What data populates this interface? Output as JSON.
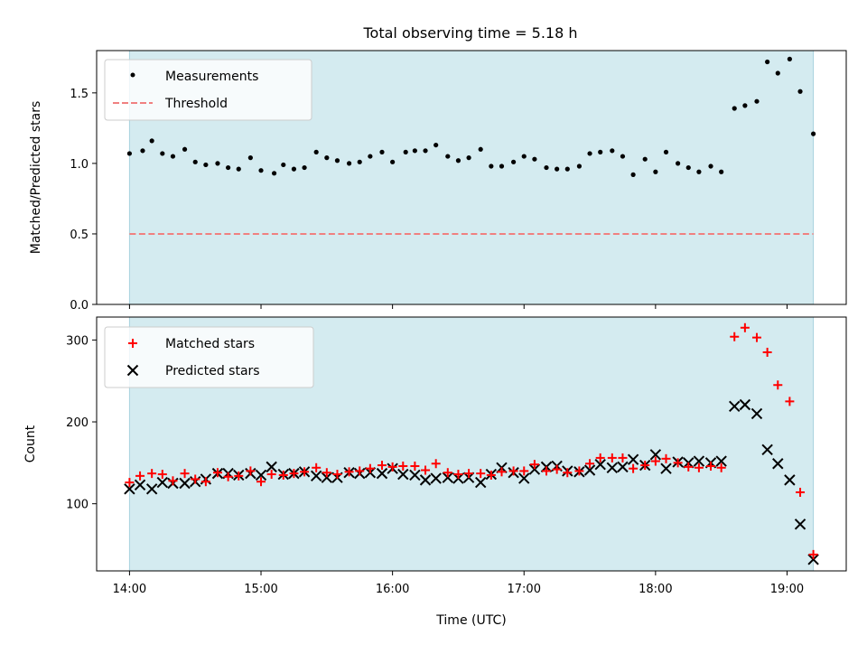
{
  "figure": {
    "title": "Total observing time = 5.18 h",
    "shade_color": "#d4ebf0",
    "shade_edge": "#a9d3df"
  },
  "chart_data": [
    {
      "type": "scatter",
      "ylabel": "Matched/Predicted stars",
      "xlim_hours": [
        13.75,
        19.45
      ],
      "ylim": [
        0,
        1.8
      ],
      "yticks": [
        "0.0",
        "0.5",
        "1.0",
        "1.5"
      ],
      "shaded_span_hours": [
        14.0,
        19.2
      ],
      "legend_position": "top-left",
      "legend": [
        "Measurements",
        "Threshold"
      ],
      "series": [
        {
          "name": "Measurements",
          "marker": "dot",
          "color": "#000000",
          "points": [
            [
              14.0,
              1.07
            ],
            [
              14.1,
              1.09
            ],
            [
              14.17,
              1.16
            ],
            [
              14.25,
              1.07
            ],
            [
              14.33,
              1.05
            ],
            [
              14.42,
              1.1
            ],
            [
              14.5,
              1.01
            ],
            [
              14.58,
              0.99
            ],
            [
              14.67,
              1.0
            ],
            [
              14.75,
              0.97
            ],
            [
              14.83,
              0.96
            ],
            [
              14.92,
              1.04
            ],
            [
              15.0,
              0.95
            ],
            [
              15.1,
              0.93
            ],
            [
              15.17,
              0.99
            ],
            [
              15.25,
              0.96
            ],
            [
              15.33,
              0.97
            ],
            [
              15.42,
              1.08
            ],
            [
              15.5,
              1.04
            ],
            [
              15.58,
              1.02
            ],
            [
              15.67,
              1.0
            ],
            [
              15.75,
              1.01
            ],
            [
              15.83,
              1.05
            ],
            [
              15.92,
              1.08
            ],
            [
              16.0,
              1.01
            ],
            [
              16.1,
              1.08
            ],
            [
              16.17,
              1.09
            ],
            [
              16.25,
              1.09
            ],
            [
              16.33,
              1.13
            ],
            [
              16.42,
              1.05
            ],
            [
              16.5,
              1.02
            ],
            [
              16.58,
              1.04
            ],
            [
              16.67,
              1.1
            ],
            [
              16.75,
              0.98
            ],
            [
              16.83,
              0.98
            ],
            [
              16.92,
              1.01
            ],
            [
              17.0,
              1.05
            ],
            [
              17.08,
              1.03
            ],
            [
              17.17,
              0.97
            ],
            [
              17.25,
              0.96
            ],
            [
              17.33,
              0.96
            ],
            [
              17.42,
              0.98
            ],
            [
              17.5,
              1.07
            ],
            [
              17.58,
              1.08
            ],
            [
              17.67,
              1.09
            ],
            [
              17.75,
              1.05
            ],
            [
              17.83,
              0.92
            ],
            [
              17.92,
              1.03
            ],
            [
              18.0,
              0.94
            ],
            [
              18.08,
              1.08
            ],
            [
              18.17,
              1.0
            ],
            [
              18.25,
              0.97
            ],
            [
              18.33,
              0.94
            ],
            [
              18.42,
              0.98
            ],
            [
              18.5,
              0.94
            ],
            [
              18.6,
              1.39
            ],
            [
              18.68,
              1.41
            ],
            [
              18.77,
              1.44
            ],
            [
              18.85,
              1.72
            ],
            [
              18.93,
              1.64
            ],
            [
              19.02,
              1.74
            ],
            [
              19.1,
              1.51
            ],
            [
              19.2,
              1.21
            ]
          ]
        },
        {
          "name": "Threshold",
          "style": "dashed",
          "color": "#f08080",
          "y": 0.5,
          "x_range_hours": [
            14.0,
            19.2
          ]
        }
      ]
    },
    {
      "type": "scatter",
      "ylabel": "Count",
      "xlabel": "Time (UTC)",
      "xlim_hours": [
        13.75,
        19.45
      ],
      "ylim": [
        18,
        328
      ],
      "yticks": [
        "100",
        "200",
        "300"
      ],
      "xticks": [
        "14:00",
        "15:00",
        "16:00",
        "17:00",
        "18:00",
        "19:00"
      ],
      "shaded_span_hours": [
        14.0,
        19.2
      ],
      "legend_position": "top-left",
      "legend": [
        "Matched stars",
        "Predicted stars"
      ],
      "series": [
        {
          "name": "Matched stars",
          "marker": "plus",
          "color": "#ff0000",
          "points": [
            [
              14.0,
              126
            ],
            [
              14.08,
              134
            ],
            [
              14.17,
              137
            ],
            [
              14.25,
              136
            ],
            [
              14.33,
              128
            ],
            [
              14.42,
              137
            ],
            [
              14.5,
              130
            ],
            [
              14.58,
              127
            ],
            [
              14.67,
              138
            ],
            [
              14.75,
              133
            ],
            [
              14.83,
              134
            ],
            [
              14.92,
              140
            ],
            [
              15.0,
              127
            ],
            [
              15.08,
              136
            ],
            [
              15.17,
              135
            ],
            [
              15.25,
              137
            ],
            [
              15.33,
              139
            ],
            [
              15.42,
              144
            ],
            [
              15.5,
              138
            ],
            [
              15.58,
              136
            ],
            [
              15.67,
              139
            ],
            [
              15.75,
              140
            ],
            [
              15.83,
              143
            ],
            [
              15.92,
              147
            ],
            [
              16.0,
              145
            ],
            [
              16.08,
              146
            ],
            [
              16.17,
              146
            ],
            [
              16.25,
              141
            ],
            [
              16.33,
              149
            ],
            [
              16.42,
              138
            ],
            [
              16.5,
              136
            ],
            [
              16.58,
              137
            ],
            [
              16.67,
              137
            ],
            [
              16.75,
              135
            ],
            [
              16.83,
              139
            ],
            [
              16.92,
              140
            ],
            [
              17.0,
              140
            ],
            [
              17.08,
              148
            ],
            [
              17.17,
              140
            ],
            [
              17.25,
              142
            ],
            [
              17.33,
              138
            ],
            [
              17.42,
              140
            ],
            [
              17.5,
              149
            ],
            [
              17.58,
              156
            ],
            [
              17.67,
              156
            ],
            [
              17.75,
              156
            ],
            [
              17.83,
              143
            ],
            [
              17.92,
              147
            ],
            [
              18.0,
              152
            ],
            [
              18.08,
              155
            ],
            [
              18.17,
              150
            ],
            [
              18.25,
              145
            ],
            [
              18.33,
              144
            ],
            [
              18.42,
              146
            ],
            [
              18.5,
              144
            ],
            [
              18.6,
              304
            ],
            [
              18.68,
              315
            ],
            [
              18.77,
              303
            ],
            [
              18.85,
              285
            ],
            [
              18.93,
              245
            ],
            [
              19.02,
              225
            ],
            [
              19.1,
              114
            ],
            [
              19.2,
              38
            ]
          ]
        },
        {
          "name": "Predicted stars",
          "marker": "x",
          "color": "#000000",
          "points": [
            [
              14.0,
              118
            ],
            [
              14.08,
              123
            ],
            [
              14.17,
              118
            ],
            [
              14.25,
              126
            ],
            [
              14.33,
              125
            ],
            [
              14.42,
              125
            ],
            [
              14.5,
              127
            ],
            [
              14.58,
              130
            ],
            [
              14.67,
              137
            ],
            [
              14.75,
              137
            ],
            [
              14.83,
              135
            ],
            [
              14.92,
              137
            ],
            [
              15.0,
              135
            ],
            [
              15.08,
              145
            ],
            [
              15.17,
              136
            ],
            [
              15.25,
              137
            ],
            [
              15.33,
              139
            ],
            [
              15.42,
              134
            ],
            [
              15.5,
              132
            ],
            [
              15.58,
              132
            ],
            [
              15.67,
              138
            ],
            [
              15.75,
              137
            ],
            [
              15.83,
              138
            ],
            [
              15.92,
              137
            ],
            [
              16.0,
              143
            ],
            [
              16.08,
              136
            ],
            [
              16.17,
              135
            ],
            [
              16.25,
              129
            ],
            [
              16.33,
              131
            ],
            [
              16.42,
              132
            ],
            [
              16.5,
              131
            ],
            [
              16.58,
              132
            ],
            [
              16.67,
              126
            ],
            [
              16.75,
              136
            ],
            [
              16.83,
              144
            ],
            [
              16.92,
              138
            ],
            [
              17.0,
              131
            ],
            [
              17.08,
              142
            ],
            [
              17.17,
              145
            ],
            [
              17.25,
              146
            ],
            [
              17.33,
              140
            ],
            [
              17.42,
              139
            ],
            [
              17.5,
              141
            ],
            [
              17.58,
              148
            ],
            [
              17.67,
              144
            ],
            [
              17.75,
              145
            ],
            [
              17.83,
              154
            ],
            [
              17.92,
              147
            ],
            [
              18.0,
              160
            ],
            [
              18.08,
              143
            ],
            [
              18.17,
              151
            ],
            [
              18.25,
              150
            ],
            [
              18.33,
              152
            ],
            [
              18.42,
              150
            ],
            [
              18.5,
              152
            ],
            [
              18.6,
              219
            ],
            [
              18.68,
              221
            ],
            [
              18.77,
              210
            ],
            [
              18.85,
              166
            ],
            [
              18.93,
              149
            ],
            [
              19.02,
              129
            ],
            [
              19.1,
              75
            ],
            [
              19.2,
              32
            ]
          ]
        }
      ]
    }
  ]
}
